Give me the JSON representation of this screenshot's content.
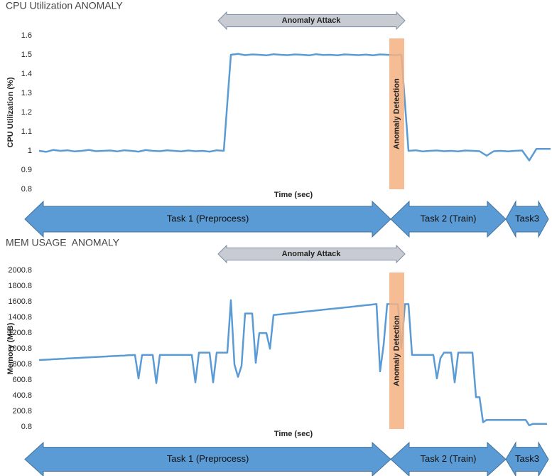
{
  "chart_data": [
    {
      "type": "line",
      "title": "CPU Utilization ANOMALY",
      "y_label": "CPU Utilization (%)",
      "x_label": "Time (sec)",
      "ylim": [
        0.8,
        1.6
      ],
      "yticks": [
        0.8,
        0.9,
        1,
        1.1,
        1.2,
        1.3,
        1.4,
        1.5,
        1.6
      ],
      "color": "#5b9bd5",
      "values": [
        1,
        0.995,
        1.005,
        1,
        1.003,
        0.997,
        1,
        1.005,
        0.998,
        1,
        1.002,
        0.997,
        1.003,
        1,
        0.996,
        1.004,
        1,
        0.998,
        1.003,
        1,
        0.997,
        1.002,
        0.998,
        1,
        0.996,
        1.003,
        1,
        1.5,
        1.505,
        1.498,
        1.502,
        1.5,
        1.497,
        1.503,
        1.5,
        1.498,
        1.502,
        1.5,
        1.497,
        1.503,
        1.499,
        1.5,
        1.497,
        1.502,
        1.5,
        1.498,
        1.501,
        1.497,
        1.502,
        1.5,
        1.498,
        1.5,
        1,
        1.003,
        0.997,
        1,
        1.002,
        0.998,
        1,
        0.997,
        1.002,
        1,
        0.998,
        0.975,
        0.998,
        1,
        0.997,
        1,
        1.002,
        0.95,
        1.01,
        1.01,
        1.01
      ],
      "annotations": {
        "attack": "Anomaly Attack",
        "detection": "Anomaly Detection"
      },
      "tasks": [
        "Task 1 (Preprocess)",
        "Task 2 (Train)",
        "Task3"
      ]
    },
    {
      "type": "line",
      "title": "MEM USAGE  ANOMALY",
      "y_label": "Memory (MiB)",
      "x_label": "Time (sec)",
      "ylim": [
        0.8,
        2000.8
      ],
      "yticks": [
        0.8,
        200.8,
        400.8,
        600.8,
        800.8,
        1000.8,
        1200.8,
        1400.8,
        1600.8,
        1800.8,
        2000.8
      ],
      "color": "#5b9bd5",
      "values": [
        855,
        858,
        860,
        862,
        865,
        867,
        870,
        872,
        875,
        877,
        880,
        882,
        884,
        887,
        889,
        892,
        894,
        896,
        899,
        901,
        904,
        906,
        908,
        911,
        913,
        916,
        918,
        920,
        620,
        920,
        920,
        920,
        920,
        560,
        920,
        920,
        920,
        920,
        920,
        920,
        920,
        920,
        920,
        920,
        570,
        950,
        950,
        950,
        950,
        570,
        950,
        950,
        950,
        950,
        1620,
        800,
        640,
        780,
        1450,
        1450,
        1450,
        820,
        1200,
        1200,
        1200,
        1000,
        1430,
        1435,
        1440,
        1445,
        1450,
        1454,
        1459,
        1464,
        1469,
        1474,
        1478,
        1483,
        1488,
        1493,
        1498,
        1503,
        1507,
        1512,
        1517,
        1522,
        1527,
        1531,
        1536,
        1541,
        1546,
        1551,
        1556,
        1560,
        1565,
        1570,
        710,
        1050,
        1570,
        1570,
        1570,
        1570,
        1000,
        1570,
        1570,
        920,
        920,
        920,
        920,
        920,
        920,
        920,
        620,
        880,
        950,
        950,
        950,
        570,
        950,
        950,
        950,
        950,
        950,
        380,
        380,
        60,
        90,
        90,
        90,
        90,
        90,
        90,
        90,
        90,
        90,
        90,
        90,
        90,
        20,
        40,
        40,
        40,
        40,
        40
      ],
      "annotations": {
        "attack": "Anomaly Attack",
        "detection": "Anomaly Detection"
      },
      "tasks": [
        "Task 1 (Preprocess)",
        "Task 2 (Train)",
        "Task3"
      ]
    }
  ]
}
